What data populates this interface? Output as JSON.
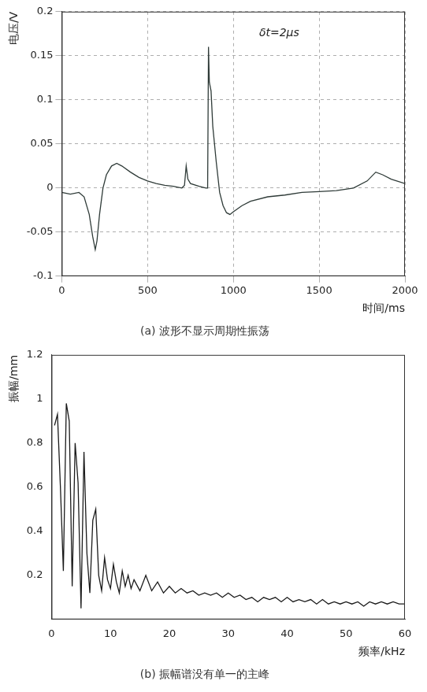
{
  "chart_data": [
    {
      "type": "line",
      "title": "(a) 波形不显示周期性振荡",
      "x_label": "时间/ms",
      "y_label": "电压/V",
      "color": "#2f3b38",
      "grid": true,
      "xlim": [
        0,
        2000
      ],
      "xticks": [
        0,
        500,
        1000,
        1500,
        2000
      ],
      "ylim": [
        -0.1,
        0.2
      ],
      "yticks": [
        -0.1,
        -0.05,
        0,
        0.05,
        0.1,
        0.15,
        0.2
      ],
      "annotations": [
        {
          "text": "δt=2μs",
          "x": 1150,
          "y": 0.175
        }
      ],
      "x": [
        0,
        50,
        100,
        130,
        160,
        180,
        195,
        205,
        220,
        240,
        260,
        290,
        320,
        350,
        400,
        450,
        500,
        550,
        600,
        650,
        700,
        715,
        725,
        735,
        750,
        800,
        840,
        850,
        855,
        860,
        870,
        880,
        900,
        920,
        940,
        960,
        980,
        1000,
        1050,
        1100,
        1200,
        1300,
        1400,
        1500,
        1600,
        1700,
        1780,
        1830,
        1870,
        1920,
        2000
      ],
      "values": [
        -0.005,
        -0.007,
        -0.005,
        -0.01,
        -0.03,
        -0.055,
        -0.07,
        -0.06,
        -0.03,
        0.0,
        0.015,
        0.025,
        0.028,
        0.025,
        0.018,
        0.012,
        0.008,
        0.005,
        0.003,
        0.002,
        0.0,
        0.003,
        0.025,
        0.01,
        0.005,
        0.002,
        0.0,
        0.0,
        0.16,
        0.12,
        0.11,
        0.07,
        0.03,
        -0.005,
        -0.02,
        -0.028,
        -0.03,
        -0.027,
        -0.02,
        -0.015,
        -0.01,
        -0.008,
        -0.005,
        -0.004,
        -0.003,
        0.0,
        0.008,
        0.018,
        0.015,
        0.01,
        0.005
      ]
    },
    {
      "type": "line",
      "title": "(b) 振幅谱没有单一的主峰",
      "x_label": "频率/kHz",
      "y_label": "振幅/mm",
      "color": "#1a1a1a",
      "grid": false,
      "xlim": [
        0,
        60
      ],
      "xticks": [
        0,
        10,
        20,
        30,
        40,
        50,
        60
      ],
      "ylim": [
        0,
        1.2
      ],
      "yticks": [
        0.2,
        0.4,
        0.6,
        0.8,
        1,
        1.2
      ],
      "x": [
        0.5,
        1,
        1.5,
        2,
        2.5,
        3,
        3.5,
        4,
        4.5,
        5,
        5.5,
        6,
        6.5,
        7,
        7.5,
        8,
        8.5,
        9,
        9.5,
        10,
        10.5,
        11,
        11.5,
        12,
        12.5,
        13,
        13.5,
        14,
        15,
        16,
        17,
        18,
        19,
        20,
        21,
        22,
        23,
        24,
        25,
        26,
        27,
        28,
        29,
        30,
        31,
        32,
        33,
        34,
        35,
        36,
        37,
        38,
        39,
        40,
        41,
        42,
        43,
        44,
        45,
        46,
        47,
        48,
        49,
        50,
        51,
        52,
        53,
        54,
        55,
        56,
        57,
        58,
        59,
        60
      ],
      "values": [
        0.88,
        0.93,
        0.6,
        0.22,
        0.98,
        0.9,
        0.15,
        0.8,
        0.62,
        0.05,
        0.76,
        0.3,
        0.12,
        0.45,
        0.5,
        0.2,
        0.13,
        0.28,
        0.18,
        0.14,
        0.25,
        0.17,
        0.12,
        0.22,
        0.15,
        0.2,
        0.14,
        0.18,
        0.13,
        0.2,
        0.13,
        0.17,
        0.12,
        0.15,
        0.12,
        0.14,
        0.12,
        0.13,
        0.11,
        0.12,
        0.11,
        0.12,
        0.1,
        0.12,
        0.1,
        0.11,
        0.09,
        0.1,
        0.08,
        0.1,
        0.09,
        0.1,
        0.08,
        0.1,
        0.08,
        0.09,
        0.08,
        0.09,
        0.07,
        0.09,
        0.07,
        0.08,
        0.07,
        0.08,
        0.07,
        0.08,
        0.06,
        0.08,
        0.07,
        0.08,
        0.07,
        0.08,
        0.07,
        0.07
      ]
    }
  ]
}
